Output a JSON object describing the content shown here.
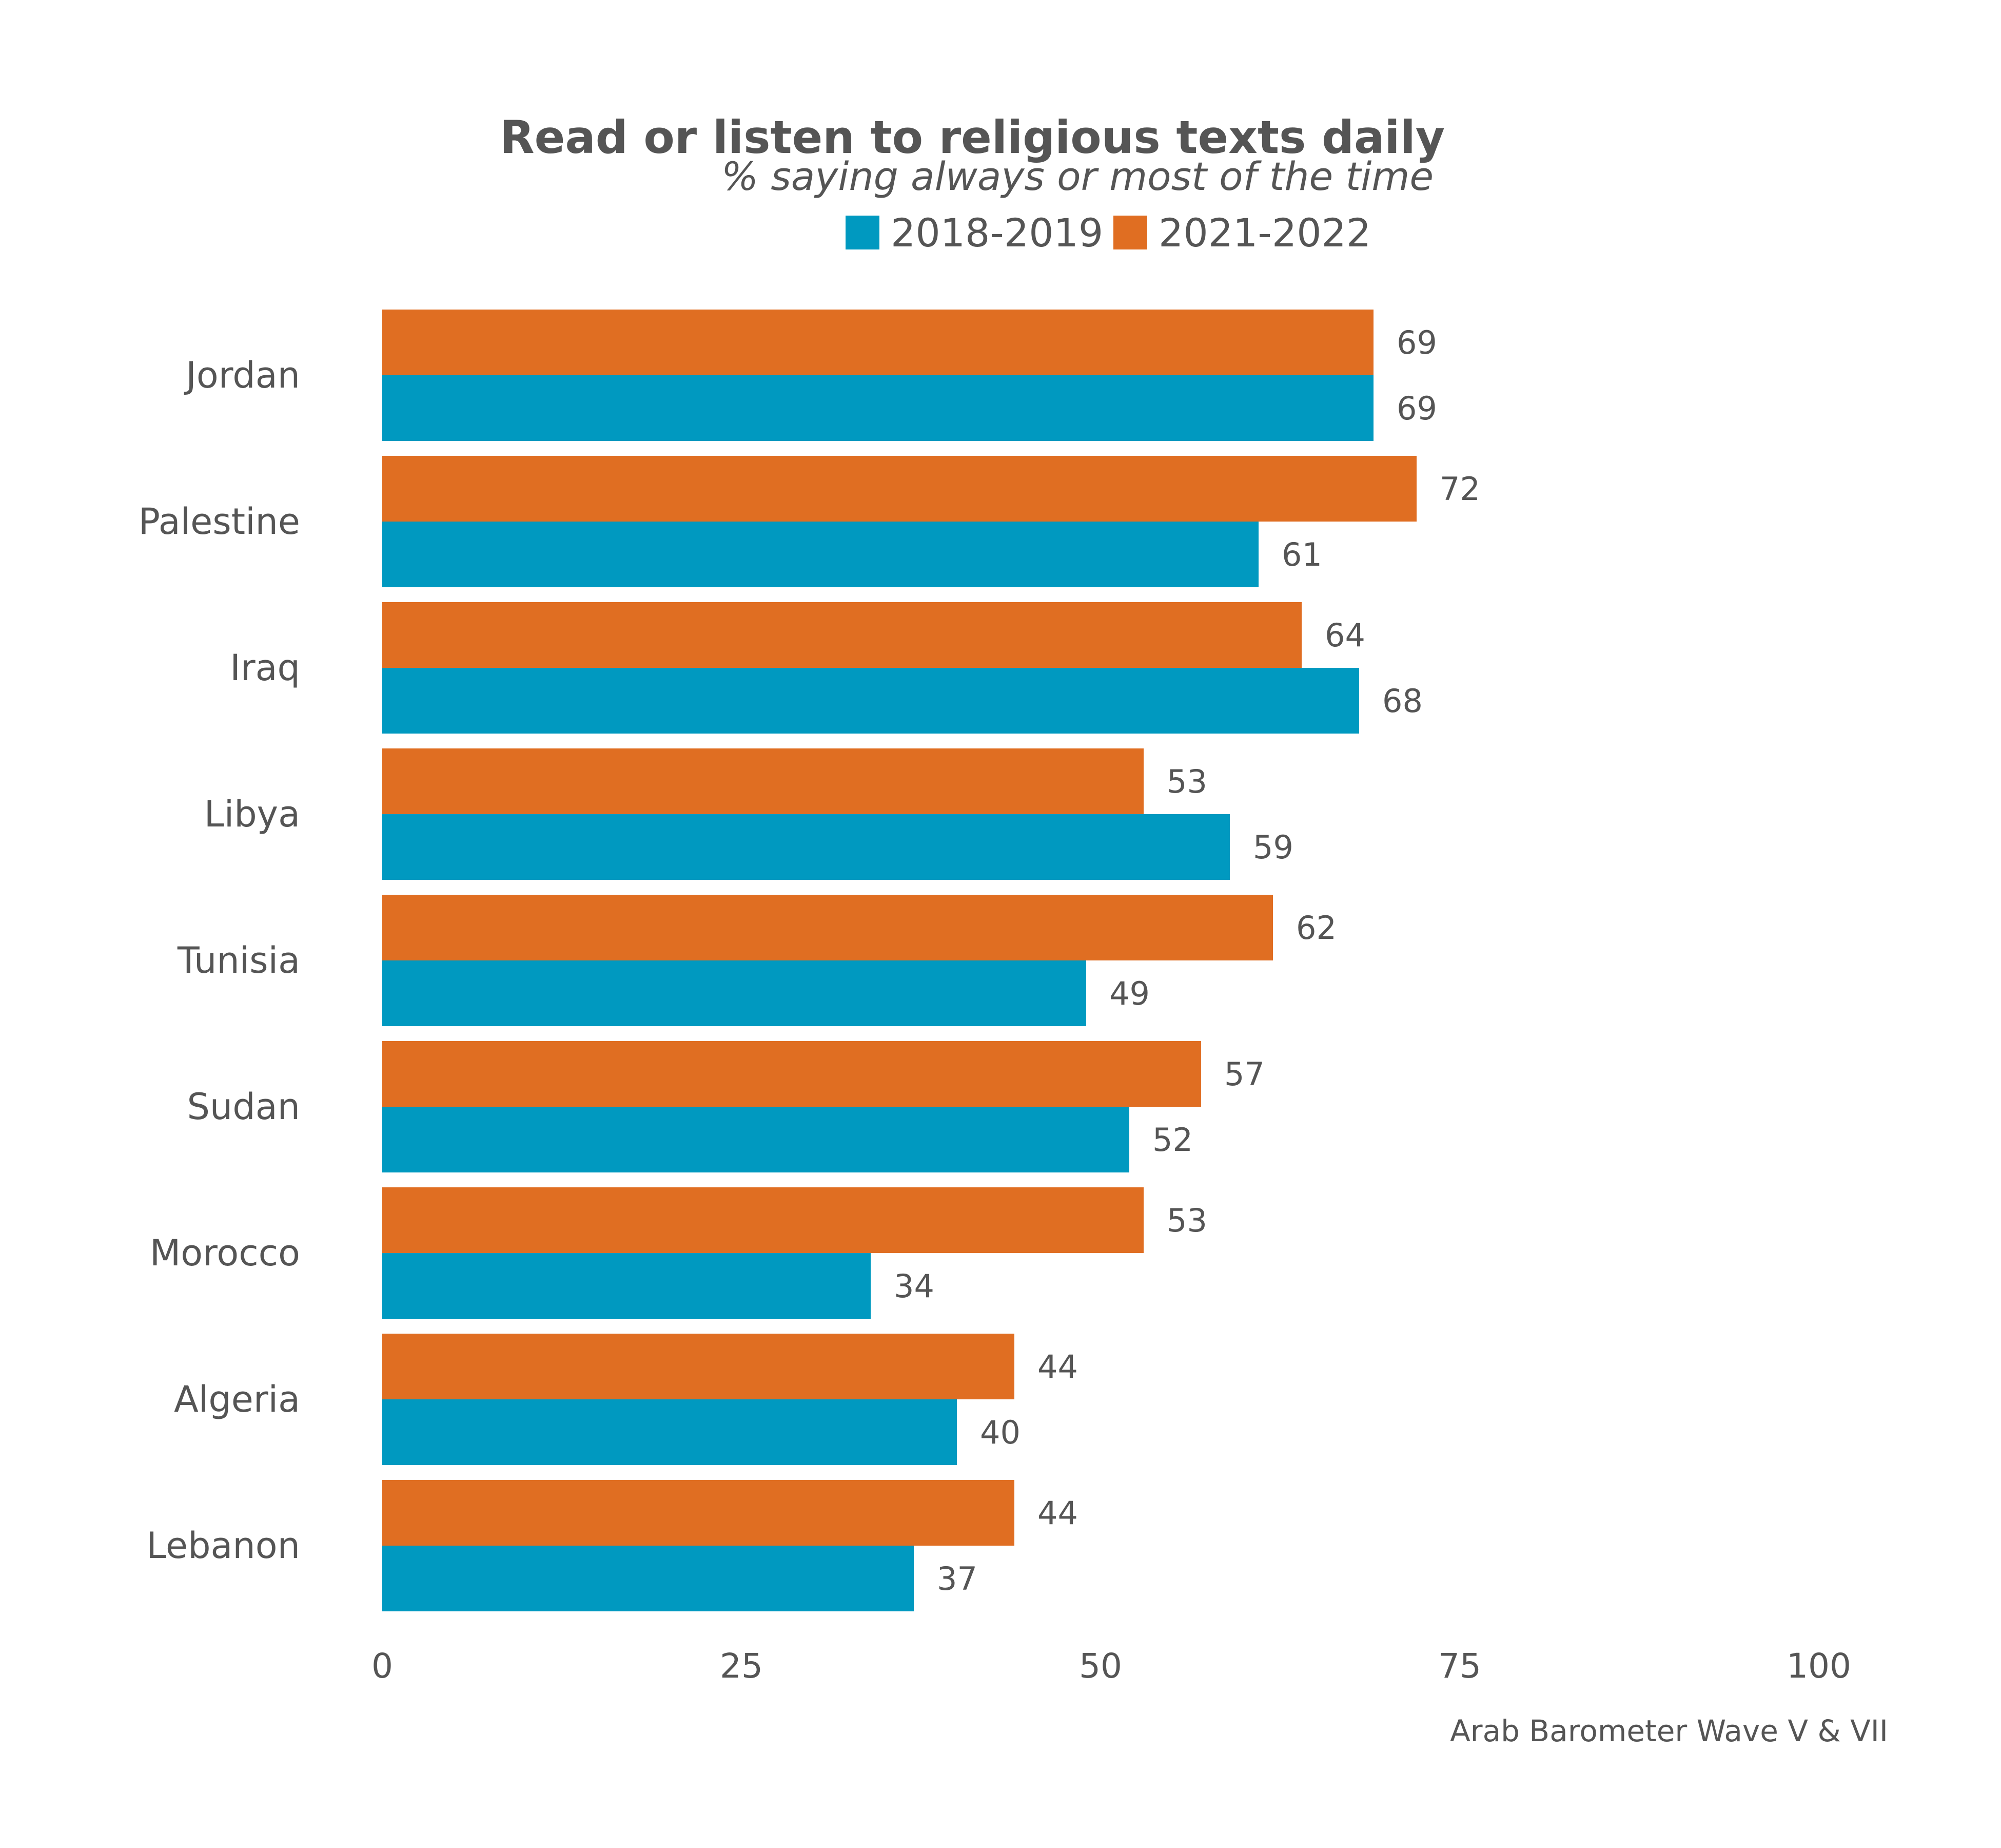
{
  "chart_data": {
    "type": "bar",
    "orientation": "horizontal",
    "title": "Read or listen to religious texts daily",
    "subtitle": "% saying always or most of the time",
    "source": "Arab Barometer Wave V & VII",
    "categories": [
      "Jordan",
      "Palestine",
      "Iraq",
      "Libya",
      "Tunisia",
      "Sudan",
      "Morocco",
      "Algeria",
      "Lebanon"
    ],
    "series": [
      {
        "name": "2018-2019",
        "color": "#0099c0",
        "values": [
          69,
          61,
          68,
          59,
          49,
          52,
          34,
          40,
          37
        ]
      },
      {
        "name": "2021-2022",
        "color": "#e06e22",
        "values": [
          69,
          72,
          64,
          53,
          62,
          57,
          53,
          44,
          44
        ]
      }
    ],
    "xlim": [
      0,
      100
    ],
    "xticks": [
      0,
      25,
      50,
      75,
      100
    ],
    "grid": false,
    "legend": "top-center"
  }
}
